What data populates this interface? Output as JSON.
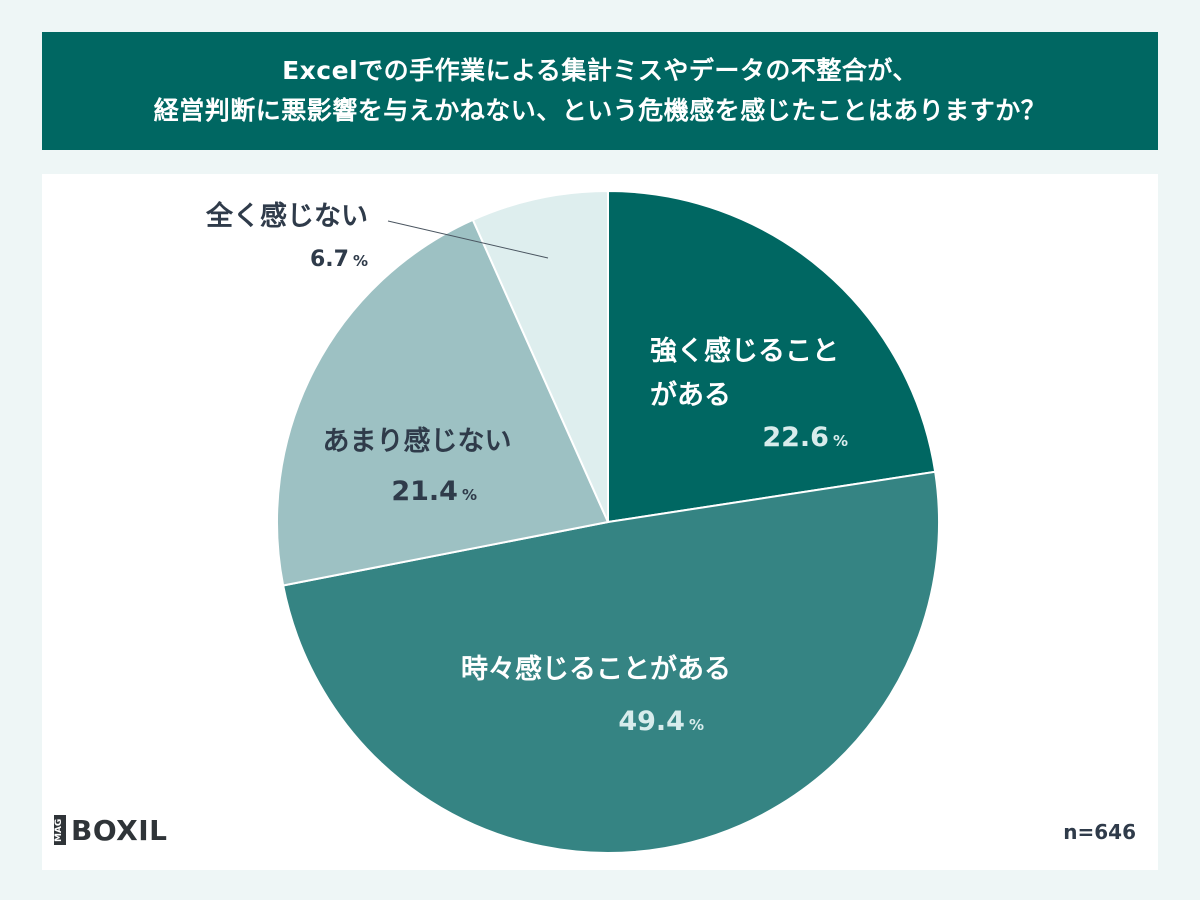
{
  "title": {
    "line1": "Excelでの手作業による集計ミスやデータの不整合が、",
    "line2": "経営判断に悪影響を与えかねない、という危機感を感じたことはありますか？"
  },
  "chart_data": {
    "type": "pie",
    "start_angle_deg": 0,
    "direction": "clockwise",
    "slices": [
      {
        "label_lines": [
          "強く感じること",
          "がある"
        ],
        "value": 22.6,
        "value_text": "22.6",
        "unit": "%",
        "color": "#006762",
        "text_color": "#ffffff",
        "value_color": "#d8ecec"
      },
      {
        "label_lines": [
          "時々感じることがある"
        ],
        "value": 49.4,
        "value_text": "49.4",
        "unit": "%",
        "color": "#358483",
        "text_color": "#ffffff",
        "value_color": "#d8ecec"
      },
      {
        "label_lines": [
          "あまり感じない"
        ],
        "value": 21.4,
        "value_text": "21.4",
        "unit": "%",
        "color": "#9dc1c3",
        "text_color": "#2f3b4a",
        "value_color": "#2f3b4a"
      },
      {
        "label_lines": [
          "全く感じない"
        ],
        "value": 6.7,
        "value_text": "6.7",
        "unit": "%",
        "color": "#deeeee",
        "text_color": "#2f3b4a",
        "value_color": "#2f3b4a"
      }
    ]
  },
  "footer": {
    "logo_mag": "MAG",
    "logo_text": "BOXIL",
    "sample_size": "n=646"
  }
}
